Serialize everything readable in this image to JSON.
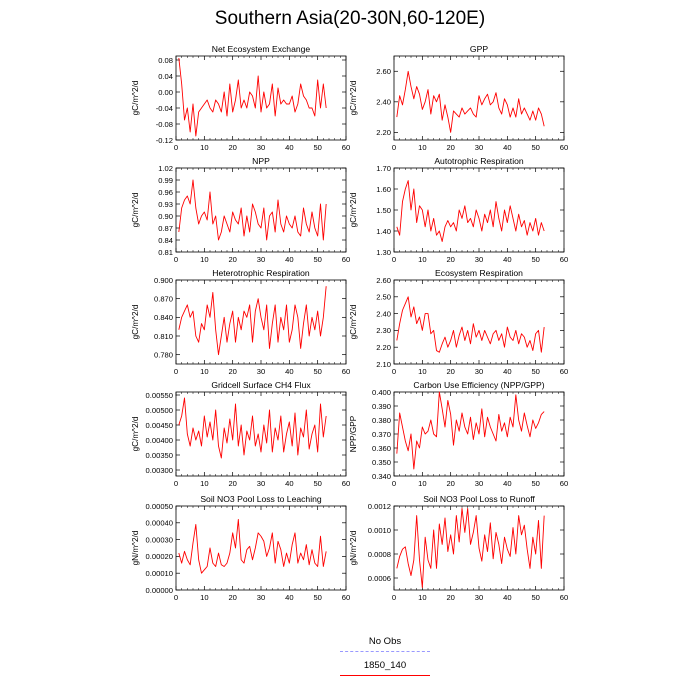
{
  "title": "Southern Asia(20-30N,60-120E)",
  "colors": {
    "series": "#ff0000",
    "no_obs": "#9999ff",
    "axis": "#000000"
  },
  "legend": [
    {
      "label": "No Obs",
      "color": "#9999ff",
      "style": "dashed"
    },
    {
      "label": "1850_140",
      "color": "#ff0000",
      "style": "solid"
    }
  ],
  "chart_data": [
    {
      "type": "line",
      "title": "Net Ecosystem Exchange",
      "ylabel": "gC/m^2/d",
      "xlim": [
        0,
        60
      ],
      "xticks": [
        0,
        10,
        20,
        30,
        40,
        50,
        60
      ],
      "ylim": [
        -0.12,
        0.09
      ],
      "yticks": [
        -0.12,
        -0.08,
        -0.04,
        0.0,
        0.04,
        0.08
      ],
      "ydec": 2,
      "series": [
        {
          "x_start": 1,
          "values": [
            0.085,
            0.02,
            -0.07,
            -0.04,
            -0.1,
            -0.03,
            -0.11,
            -0.05,
            -0.04,
            -0.03,
            -0.02,
            -0.04,
            -0.05,
            -0.02,
            -0.03,
            -0.05,
            0.0,
            -0.06,
            0.02,
            -0.05,
            -0.02,
            0.03,
            -0.04,
            -0.02,
            -0.04,
            0.0,
            -0.01,
            -0.04,
            0.04,
            -0.05,
            0.0,
            -0.04,
            -0.03,
            0.02,
            -0.06,
            0.01,
            -0.03,
            -0.02,
            -0.03,
            -0.03,
            -0.01,
            -0.05,
            -0.03,
            0.02,
            -0.01,
            -0.02,
            -0.04,
            -0.04,
            -0.06,
            0.03,
            -0.04,
            0.02,
            -0.04
          ]
        }
      ]
    },
    {
      "type": "line",
      "title": "GPP",
      "ylabel": "gC/m^2/d",
      "xlim": [
        0,
        60
      ],
      "xticks": [
        0,
        10,
        20,
        30,
        40,
        50,
        60
      ],
      "ylim": [
        2.15,
        2.7
      ],
      "yticks": [
        2.2,
        2.4,
        2.6
      ],
      "ydec": 2,
      "series": [
        {
          "x_start": 1,
          "values": [
            2.3,
            2.44,
            2.38,
            2.48,
            2.6,
            2.5,
            2.42,
            2.5,
            2.45,
            2.35,
            2.4,
            2.48,
            2.32,
            2.44,
            2.4,
            2.45,
            2.28,
            2.38,
            2.3,
            2.2,
            2.34,
            2.32,
            2.3,
            2.36,
            2.32,
            2.34,
            2.36,
            2.32,
            2.3,
            2.44,
            2.38,
            2.42,
            2.45,
            2.38,
            2.4,
            2.46,
            2.36,
            2.32,
            2.42,
            2.38,
            2.3,
            2.36,
            2.3,
            2.42,
            2.32,
            2.36,
            2.32,
            2.28,
            2.34,
            2.28,
            2.36,
            2.32,
            2.24
          ]
        }
      ]
    },
    {
      "type": "line",
      "title": "NPP",
      "ylabel": "gC/m^2/d",
      "xlim": [
        0,
        60
      ],
      "xticks": [
        0,
        10,
        20,
        30,
        40,
        50,
        60
      ],
      "ylim": [
        0.81,
        1.02
      ],
      "yticks": [
        0.81,
        0.84,
        0.87,
        0.9,
        0.93,
        0.96,
        0.99,
        1.02
      ],
      "ydec": 2,
      "series": [
        {
          "x_start": 1,
          "values": [
            0.86,
            0.92,
            0.94,
            0.95,
            0.93,
            0.99,
            0.92,
            0.88,
            0.9,
            0.91,
            0.89,
            0.96,
            0.88,
            0.9,
            0.84,
            0.86,
            0.9,
            0.88,
            0.86,
            0.91,
            0.89,
            0.88,
            0.92,
            0.85,
            0.9,
            0.86,
            0.93,
            0.91,
            0.88,
            0.87,
            0.92,
            0.84,
            0.9,
            0.91,
            0.86,
            0.94,
            0.88,
            0.86,
            0.9,
            0.88,
            0.87,
            0.9,
            0.86,
            0.85,
            0.92,
            0.88,
            0.86,
            0.91,
            0.87,
            0.85,
            0.93,
            0.84,
            0.93
          ]
        }
      ]
    },
    {
      "type": "line",
      "title": "Autotrophic Respiration",
      "ylabel": "gC/m^2/d",
      "xlim": [
        0,
        60
      ],
      "xticks": [
        0,
        10,
        20,
        30,
        40,
        50,
        60
      ],
      "ylim": [
        1.3,
        1.7
      ],
      "yticks": [
        1.3,
        1.4,
        1.5,
        1.6,
        1.7
      ],
      "ydec": 2,
      "series": [
        {
          "x_start": 1,
          "values": [
            1.42,
            1.38,
            1.54,
            1.6,
            1.64,
            1.5,
            1.6,
            1.44,
            1.52,
            1.5,
            1.42,
            1.5,
            1.4,
            1.46,
            1.38,
            1.4,
            1.35,
            1.42,
            1.45,
            1.42,
            1.44,
            1.4,
            1.5,
            1.46,
            1.52,
            1.44,
            1.46,
            1.42,
            1.5,
            1.46,
            1.4,
            1.48,
            1.44,
            1.5,
            1.42,
            1.54,
            1.46,
            1.4,
            1.5,
            1.44,
            1.52,
            1.46,
            1.4,
            1.48,
            1.42,
            1.45,
            1.38,
            1.44,
            1.4,
            1.46,
            1.38,
            1.44,
            1.4
          ]
        }
      ]
    },
    {
      "type": "line",
      "title": "Heterotrophic Respiration",
      "ylabel": "gC/m^2/d",
      "xlim": [
        0,
        60
      ],
      "xticks": [
        0,
        10,
        20,
        30,
        40,
        50,
        60
      ],
      "ylim": [
        0.765,
        0.9
      ],
      "yticks": [
        0.78,
        0.81,
        0.84,
        0.87,
        0.9
      ],
      "ydec": 3,
      "series": [
        {
          "x_start": 1,
          "values": [
            0.82,
            0.84,
            0.85,
            0.86,
            0.84,
            0.85,
            0.81,
            0.8,
            0.83,
            0.82,
            0.86,
            0.84,
            0.88,
            0.82,
            0.78,
            0.81,
            0.84,
            0.8,
            0.83,
            0.85,
            0.8,
            0.84,
            0.82,
            0.85,
            0.84,
            0.86,
            0.8,
            0.85,
            0.87,
            0.84,
            0.82,
            0.86,
            0.79,
            0.83,
            0.86,
            0.8,
            0.84,
            0.82,
            0.86,
            0.8,
            0.82,
            0.86,
            0.84,
            0.79,
            0.83,
            0.86,
            0.81,
            0.84,
            0.82,
            0.85,
            0.81,
            0.84,
            0.89
          ]
        }
      ]
    },
    {
      "type": "line",
      "title": "Ecosystem Respiration",
      "ylabel": "gC/m^2/d",
      "xlim": [
        0,
        60
      ],
      "xticks": [
        0,
        10,
        20,
        30,
        40,
        50,
        60
      ],
      "ylim": [
        2.1,
        2.6
      ],
      "yticks": [
        2.1,
        2.2,
        2.3,
        2.4,
        2.5,
        2.6
      ],
      "ydec": 2,
      "series": [
        {
          "x_start": 1,
          "values": [
            2.24,
            2.34,
            2.42,
            2.46,
            2.5,
            2.38,
            2.44,
            2.34,
            2.38,
            2.3,
            2.4,
            2.4,
            2.28,
            2.3,
            2.18,
            2.17,
            2.22,
            2.26,
            2.2,
            2.24,
            2.3,
            2.2,
            2.27,
            2.32,
            2.24,
            2.3,
            2.22,
            2.34,
            2.26,
            2.3,
            2.24,
            2.3,
            2.26,
            2.22,
            2.28,
            2.3,
            2.24,
            2.28,
            2.2,
            2.32,
            2.26,
            2.24,
            2.3,
            2.22,
            2.28,
            2.26,
            2.2,
            2.24,
            2.18,
            2.28,
            2.3,
            2.17,
            2.32
          ]
        }
      ]
    },
    {
      "type": "line",
      "title": "Gridcell Surface CH4 Flux",
      "ylabel": "gC/m^2/d",
      "xlim": [
        0,
        60
      ],
      "xticks": [
        0,
        10,
        20,
        30,
        40,
        50,
        60
      ],
      "ylim": [
        0.0028,
        0.0056
      ],
      "yticks": [
        0.003,
        0.0035,
        0.004,
        0.0045,
        0.005,
        0.0055
      ],
      "ydec": 5,
      "series": [
        {
          "x_start": 1,
          "values": [
            0.0045,
            0.0048,
            0.0054,
            0.0042,
            0.0038,
            0.0044,
            0.004,
            0.0043,
            0.0038,
            0.0048,
            0.0041,
            0.0046,
            0.004,
            0.005,
            0.0038,
            0.0034,
            0.0044,
            0.0039,
            0.0047,
            0.004,
            0.0052,
            0.0038,
            0.0045,
            0.0035,
            0.0043,
            0.004,
            0.0048,
            0.0038,
            0.0042,
            0.0036,
            0.0045,
            0.0039,
            0.005,
            0.0036,
            0.0044,
            0.004,
            0.0048,
            0.0036,
            0.0042,
            0.0046,
            0.0038,
            0.0049,
            0.0035,
            0.0044,
            0.0041,
            0.005,
            0.0037,
            0.0042,
            0.0045,
            0.0036,
            0.0052,
            0.0041,
            0.0048
          ]
        }
      ]
    },
    {
      "type": "line",
      "title": "Carbon Use Efficiency (NPP/GPP)",
      "ylabel": "NPP/GPP",
      "xlim": [
        0,
        60
      ],
      "xticks": [
        0,
        10,
        20,
        30,
        40,
        50,
        60
      ],
      "ylim": [
        0.34,
        0.4
      ],
      "yticks": [
        0.34,
        0.35,
        0.36,
        0.37,
        0.38,
        0.39,
        0.4
      ],
      "ydec": 3,
      "series": [
        {
          "x_start": 1,
          "values": [
            0.356,
            0.385,
            0.375,
            0.365,
            0.358,
            0.37,
            0.345,
            0.365,
            0.36,
            0.375,
            0.37,
            0.372,
            0.38,
            0.37,
            0.368,
            0.4,
            0.388,
            0.375,
            0.394,
            0.384,
            0.362,
            0.38,
            0.372,
            0.385,
            0.375,
            0.37,
            0.382,
            0.366,
            0.378,
            0.37,
            0.388,
            0.368,
            0.382,
            0.375,
            0.37,
            0.365,
            0.384,
            0.372,
            0.378,
            0.368,
            0.382,
            0.375,
            0.398,
            0.38,
            0.372,
            0.385,
            0.376,
            0.368,
            0.38,
            0.374,
            0.378,
            0.384,
            0.386
          ]
        }
      ]
    },
    {
      "type": "line",
      "title": "Soil NO3 Pool Loss to Leaching",
      "ylabel": "gN/m^2/d",
      "xlim": [
        0,
        60
      ],
      "xticks": [
        0,
        10,
        20,
        30,
        40,
        50,
        60
      ],
      "ylim": [
        0.0,
        0.0005
      ],
      "yticks": [
        0.0,
        0.0001,
        0.0002,
        0.0003,
        0.0004,
        0.0005
      ],
      "ydec": 5,
      "series": [
        {
          "x_start": 1,
          "values": [
            0.00022,
            0.00016,
            0.00023,
            0.00018,
            0.00015,
            0.00028,
            0.00039,
            0.00018,
            0.0001,
            0.00012,
            0.00014,
            0.00025,
            0.00016,
            0.00014,
            0.00022,
            0.00015,
            0.00014,
            0.00016,
            0.00022,
            0.00034,
            0.00025,
            0.00042,
            0.00018,
            0.00016,
            0.00024,
            0.00026,
            0.00018,
            0.00025,
            0.00034,
            0.00032,
            0.00029,
            0.0002,
            0.00025,
            0.00034,
            0.00016,
            0.00029,
            0.00024,
            0.00014,
            0.00022,
            0.00016,
            0.00027,
            0.00034,
            0.00016,
            0.00022,
            0.00018,
            0.00027,
            0.00015,
            0.00024,
            0.00016,
            0.00014,
            0.00032,
            0.00014,
            0.00023
          ]
        }
      ]
    },
    {
      "type": "line",
      "title": "Soil NO3 Pool Loss to Runoff",
      "ylabel": "gN/m^2/d",
      "xlim": [
        0,
        60
      ],
      "xticks": [
        0,
        10,
        20,
        30,
        40,
        50,
        60
      ],
      "ylim": [
        0.0005,
        0.0012
      ],
      "yticks": [
        0.0006,
        0.0008,
        0.001,
        0.0012
      ],
      "ydec": 4,
      "series": [
        {
          "x_start": 1,
          "values": [
            0.00068,
            0.00078,
            0.00084,
            0.00086,
            0.00072,
            0.00062,
            0.00075,
            0.00112,
            0.00075,
            0.00052,
            0.00094,
            0.00075,
            0.00068,
            0.001,
            0.00068,
            0.00105,
            0.00088,
            0.0011,
            0.00082,
            0.00096,
            0.0008,
            0.00112,
            0.0009,
            0.00118,
            0.00098,
            0.00118,
            0.00088,
            0.00098,
            0.00112,
            0.00085,
            0.00074,
            0.00096,
            0.00082,
            0.00106,
            0.00076,
            0.00098,
            0.00088,
            0.00072,
            0.00094,
            0.00084,
            0.00078,
            0.00102,
            0.0008,
            0.00112,
            0.00096,
            0.00104,
            0.00084,
            0.00068,
            0.00094,
            0.0008,
            0.00108,
            0.00068,
            0.00112
          ]
        }
      ]
    }
  ]
}
